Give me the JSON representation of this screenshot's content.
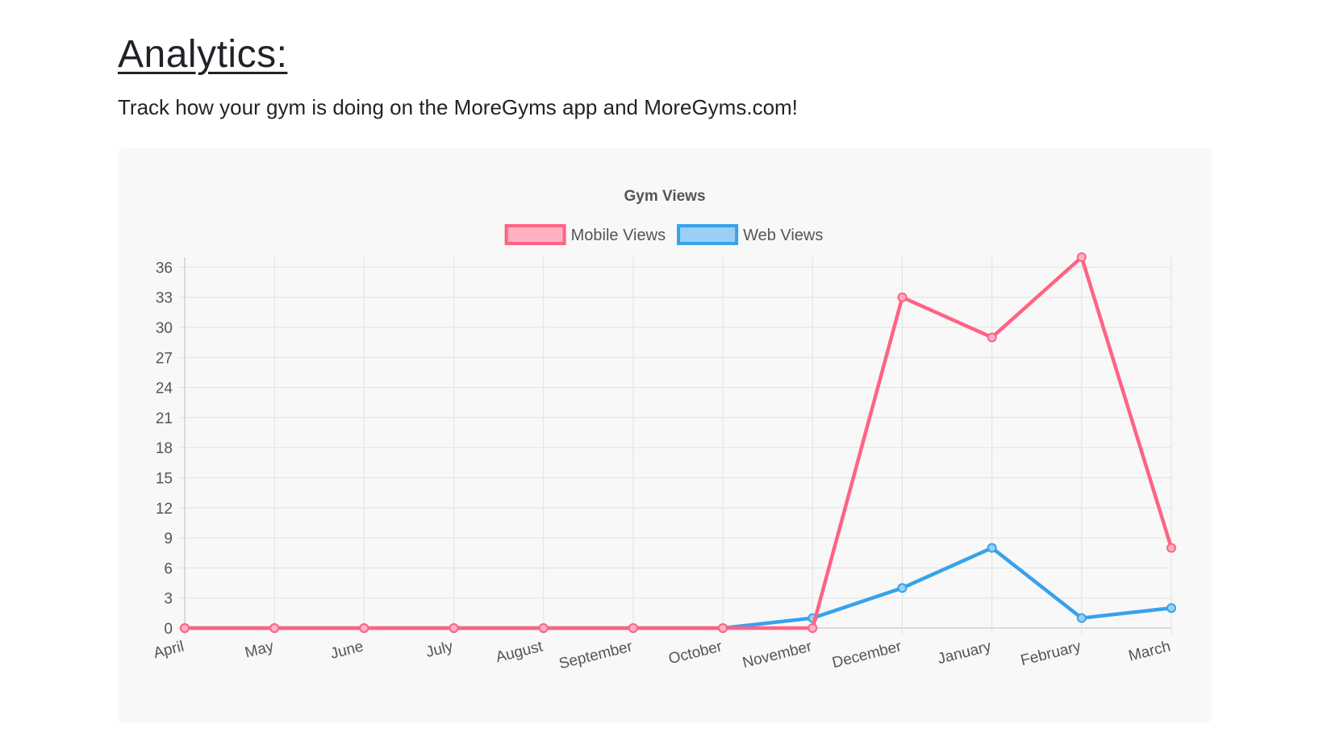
{
  "page": {
    "heading": "Analytics:",
    "subtitle": "Track how your gym is doing on the MoreGyms app and MoreGyms.com!"
  },
  "chart_data": {
    "type": "line",
    "title": "Gym Views",
    "xlabel": "",
    "ylabel": "",
    "categories": [
      "April",
      "May",
      "June",
      "July",
      "August",
      "September",
      "October",
      "November",
      "December",
      "January",
      "February",
      "March"
    ],
    "series": [
      {
        "name": "Mobile Views",
        "color": "#ff6384",
        "fill": "#ffb1c1",
        "values": [
          0,
          0,
          0,
          0,
          0,
          0,
          0,
          0,
          33,
          29,
          37,
          8
        ]
      },
      {
        "name": "Web Views",
        "color": "#36a2eb",
        "fill": "#9ad0f5",
        "values": [
          0,
          0,
          0,
          0,
          0,
          0,
          0,
          1,
          4,
          8,
          1,
          2
        ]
      }
    ],
    "ylim": [
      0,
      37
    ],
    "yticks": [
      0,
      3,
      6,
      9,
      12,
      15,
      18,
      21,
      24,
      27,
      30,
      33,
      36
    ],
    "grid": true,
    "legend_position": "top"
  }
}
